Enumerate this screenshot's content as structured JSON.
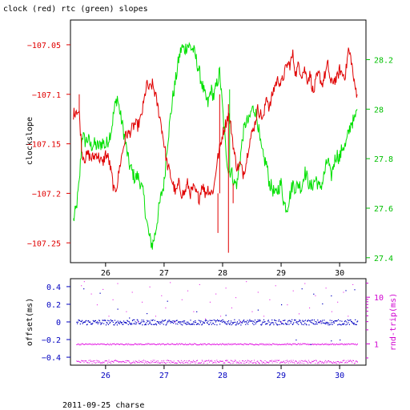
{
  "title": "clock (red) rtc (green) slopes",
  "footer": "2011-09-25 charse",
  "colors": {
    "clock": "#e00000",
    "rtc": "#00e000",
    "offset": "#0000c0",
    "rtrip": "#e000e0",
    "axis": "#000000"
  },
  "chart_data": [
    {
      "type": "line",
      "title": "clock (red) rtc (green) slopes",
      "ylabel": "clockslope",
      "ylabel_right": "",
      "xlim": [
        25.4,
        30.45
      ],
      "ylim": [
        -107.27,
        -107.025
      ],
      "ylim_right": [
        27.38,
        28.36
      ],
      "x_ticks": [
        "26",
        "27",
        "28",
        "29",
        "30"
      ],
      "y_ticks_left": [
        "-107.05",
        "-107.1",
        "-107.15",
        "-107.2",
        "-107.25"
      ],
      "y_ticks_right": [
        "28.2",
        "28",
        "27.8",
        "27.6",
        "27.4"
      ],
      "series": [
        {
          "axis": "left",
          "color": "#e00000",
          "x": [
            25.45,
            25.5,
            25.55,
            25.6,
            25.65,
            25.7,
            25.75,
            25.8,
            25.85,
            25.9,
            25.95,
            26.0,
            26.05,
            26.1,
            26.15,
            26.2,
            26.25,
            26.3,
            26.35,
            26.4,
            26.45,
            26.5,
            26.55,
            26.6,
            26.65,
            26.7,
            26.75,
            26.8,
            26.85,
            26.9,
            26.95,
            27.0,
            27.05,
            27.1,
            27.15,
            27.2,
            27.25,
            27.3,
            27.35,
            27.4,
            27.45,
            27.5,
            27.55,
            27.6,
            27.65,
            27.7,
            27.75,
            27.8,
            27.85,
            27.9,
            27.95,
            28.0,
            28.05,
            28.1,
            28.15,
            28.2,
            28.25,
            28.3,
            28.35,
            28.4,
            28.45,
            28.5,
            28.55,
            28.6,
            28.65,
            28.7,
            28.75,
            28.8,
            28.85,
            28.9,
            28.95,
            29.0,
            29.05,
            29.1,
            29.15,
            29.2,
            29.25,
            29.3,
            29.35,
            29.4,
            29.45,
            29.5,
            29.55,
            29.6,
            29.65,
            29.7,
            29.75,
            29.8,
            29.85,
            29.9,
            29.95,
            30.0,
            30.05,
            30.1,
            30.15,
            30.2,
            30.25,
            30.3
          ],
          "y": [
            -107.12,
            -107.115,
            -107.12,
            -107.16,
            -107.165,
            -107.16,
            -107.165,
            -107.163,
            -107.16,
            -107.165,
            -107.17,
            -107.16,
            -107.165,
            -107.18,
            -107.2,
            -107.19,
            -107.17,
            -107.155,
            -107.14,
            -107.14,
            -107.135,
            -107.13,
            -107.132,
            -107.125,
            -107.11,
            -107.09,
            -107.095,
            -107.09,
            -107.1,
            -107.115,
            -107.13,
            -107.15,
            -107.17,
            -107.18,
            -107.19,
            -107.2,
            -107.19,
            -107.2,
            -107.2,
            -107.19,
            -107.2,
            -107.195,
            -107.2,
            -107.205,
            -107.19,
            -107.2,
            -107.195,
            -107.2,
            -107.195,
            -107.17,
            -107.155,
            -107.14,
            -107.13,
            -107.12,
            -107.135,
            -107.16,
            -107.175,
            -107.17,
            -107.18,
            -107.17,
            -107.15,
            -107.14,
            -107.13,
            -107.115,
            -107.12,
            -107.125,
            -107.1,
            -107.115,
            -107.1,
            -107.09,
            -107.085,
            -107.09,
            -107.08,
            -107.07,
            -107.07,
            -107.06,
            -107.08,
            -107.07,
            -107.08,
            -107.075,
            -107.085,
            -107.08,
            -107.1,
            -107.085,
            -107.08,
            -107.09,
            -107.08,
            -107.07,
            -107.09,
            -107.085,
            -107.085,
            -107.075,
            -107.08,
            -107.08,
            -107.055,
            -107.065,
            -107.09,
            -107.1
          ]
        },
        {
          "axis": "right",
          "color": "#00e000",
          "x": [
            25.45,
            25.5,
            25.55,
            25.6,
            25.65,
            25.7,
            25.75,
            25.8,
            25.85,
            25.9,
            25.95,
            26.0,
            26.05,
            26.1,
            26.15,
            26.2,
            26.25,
            26.3,
            26.35,
            26.4,
            26.45,
            26.5,
            26.55,
            26.6,
            26.65,
            26.7,
            26.75,
            26.8,
            26.85,
            26.9,
            26.95,
            27.0,
            27.05,
            27.1,
            27.15,
            27.2,
            27.25,
            27.3,
            27.35,
            27.4,
            27.45,
            27.5,
            27.55,
            27.6,
            27.65,
            27.7,
            27.75,
            27.8,
            27.85,
            27.9,
            27.95,
            28.0,
            28.05,
            28.1,
            28.15,
            28.2,
            28.25,
            28.3,
            28.35,
            28.4,
            28.45,
            28.5,
            28.55,
            28.6,
            28.65,
            28.7,
            28.75,
            28.8,
            28.85,
            28.9,
            28.95,
            29.0,
            29.05,
            29.1,
            29.15,
            29.2,
            29.25,
            29.3,
            29.35,
            29.4,
            29.45,
            29.5,
            29.55,
            29.6,
            29.65,
            29.7,
            29.75,
            29.8,
            29.85,
            29.9,
            29.95,
            30.0,
            30.05,
            30.1,
            30.15,
            30.2,
            30.25,
            30.3
          ],
          "y": [
            27.55,
            27.6,
            27.7,
            27.9,
            27.87,
            27.88,
            27.85,
            27.86,
            27.85,
            27.85,
            27.87,
            27.85,
            27.88,
            27.92,
            28.0,
            28.05,
            27.98,
            27.92,
            27.85,
            27.78,
            27.75,
            27.72,
            27.73,
            27.7,
            27.65,
            27.55,
            27.48,
            27.45,
            27.5,
            27.58,
            27.65,
            27.7,
            27.85,
            27.95,
            28.05,
            28.12,
            28.2,
            28.25,
            28.24,
            28.26,
            28.25,
            28.24,
            28.2,
            28.15,
            28.1,
            28.05,
            28.02,
            28.08,
            28.05,
            28.1,
            28.15,
            28.0,
            27.85,
            27.75,
            27.75,
            27.7,
            27.7,
            27.8,
            27.9,
            27.95,
            27.95,
            28.0,
            28.0,
            27.95,
            27.85,
            27.8,
            27.78,
            27.7,
            27.68,
            27.65,
            27.68,
            27.7,
            27.62,
            27.6,
            27.65,
            27.7,
            27.68,
            27.7,
            27.68,
            27.75,
            27.72,
            27.68,
            27.7,
            27.72,
            27.68,
            27.7,
            27.75,
            27.8,
            27.72,
            27.78,
            27.82,
            27.8,
            27.85,
            27.85,
            27.9,
            27.95,
            27.95,
            28.0
          ]
        }
      ],
      "spikes": [
        {
          "x": 27.92,
          "y_from": -107.2,
          "y_to": -107.24,
          "axis": "left",
          "color": "#e00000"
        },
        {
          "x": 27.95,
          "y_from": -107.2,
          "y_to": -107.1,
          "axis": "left",
          "color": "#e00000"
        },
        {
          "x": 28.1,
          "y_from": -107.11,
          "y_to": -107.26,
          "axis": "left",
          "color": "#e00000"
        },
        {
          "x": 28.18,
          "y_from": -107.21,
          "y_to": -107.19,
          "axis": "left",
          "color": "#e00000"
        },
        {
          "x": 25.55,
          "y_from": -107.12,
          "y_to": -107.1,
          "axis": "left",
          "color": "#e00000"
        },
        {
          "x": 28.12,
          "y_from": 27.75,
          "y_to": 28.08,
          "axis": "right",
          "color": "#00e000"
        }
      ]
    },
    {
      "type": "scatter",
      "ylabel": "offset(ms)",
      "ylabel_right": "rnd-trip(ms)",
      "xlim": [
        25.4,
        30.45
      ],
      "ylim": [
        -0.49,
        0.49
      ],
      "ylim_right_log": [
        0.35,
        25
      ],
      "x_ticks": [
        "26",
        "27",
        "28",
        "29",
        "30"
      ],
      "y_ticks_left": [
        "0.4",
        "0.2",
        "0",
        "-0.2",
        "-0.4"
      ],
      "y_ticks_right": [
        "10",
        "1"
      ],
      "offset_band": {
        "x_from": 25.5,
        "x_to": 30.3,
        "level": 0.0,
        "spread": 0.03,
        "color": "#0000c0"
      },
      "rtrip_bands": [
        {
          "x_from": 25.5,
          "x_to": 30.3,
          "level": 1.0,
          "spread_log": 0.015,
          "color": "#e000e0"
        },
        {
          "x_from": 25.5,
          "x_to": 30.3,
          "level": 0.42,
          "spread_log": 0.035,
          "color": "#e000e0"
        }
      ],
      "offset_outliers": [
        {
          "x": 25.62,
          "y": 0.38
        },
        {
          "x": 25.9,
          "y": 0.33
        },
        {
          "x": 26.2,
          "y": 0.15
        },
        {
          "x": 26.7,
          "y": 0.1
        },
        {
          "x": 27.05,
          "y": 0.24
        },
        {
          "x": 27.55,
          "y": 0.12
        },
        {
          "x": 28.05,
          "y": 0.08
        },
        {
          "x": 28.6,
          "y": 0.14
        },
        {
          "x": 29.0,
          "y": 0.2
        },
        {
          "x": 29.35,
          "y": 0.38
        },
        {
          "x": 29.55,
          "y": 0.32
        },
        {
          "x": 29.7,
          "y": 0.21
        },
        {
          "x": 29.85,
          "y": 0.3
        },
        {
          "x": 30.1,
          "y": 0.36
        },
        {
          "x": 30.25,
          "y": 0.37
        },
        {
          "x": 29.25,
          "y": -0.2
        },
        {
          "x": 29.85,
          "y": -0.21
        },
        {
          "x": 30.0,
          "y": -0.2
        },
        {
          "x": 29.5,
          "y": -0.25
        },
        {
          "x": 26.4,
          "y": 0.05
        }
      ],
      "rtrip_outliers": [
        {
          "x": 25.58,
          "y": 18
        },
        {
          "x": 25.63,
          "y": 22
        },
        {
          "x": 25.75,
          "y": 12
        },
        {
          "x": 25.85,
          "y": 7
        },
        {
          "x": 25.95,
          "y": 15
        },
        {
          "x": 26.05,
          "y": 4
        },
        {
          "x": 26.12,
          "y": 9
        },
        {
          "x": 26.2,
          "y": 20
        },
        {
          "x": 26.35,
          "y": 5
        },
        {
          "x": 26.45,
          "y": 13
        },
        {
          "x": 26.55,
          "y": 3
        },
        {
          "x": 26.62,
          "y": 8
        },
        {
          "x": 26.75,
          "y": 17
        },
        {
          "x": 26.85,
          "y": 4
        },
        {
          "x": 26.95,
          "y": 11
        },
        {
          "x": 27.02,
          "y": 6
        },
        {
          "x": 27.1,
          "y": 21
        },
        {
          "x": 27.18,
          "y": 3
        },
        {
          "x": 27.3,
          "y": 9
        },
        {
          "x": 27.4,
          "y": 14
        },
        {
          "x": 27.5,
          "y": 5
        },
        {
          "x": 27.6,
          "y": 19
        },
        {
          "x": 27.7,
          "y": 3.5
        },
        {
          "x": 27.78,
          "y": 8
        },
        {
          "x": 27.88,
          "y": 12
        },
        {
          "x": 27.96,
          "y": 4
        },
        {
          "x": 28.05,
          "y": 16
        },
        {
          "x": 28.15,
          "y": 6
        },
        {
          "x": 28.22,
          "y": 10
        },
        {
          "x": 28.3,
          "y": 3
        },
        {
          "x": 28.4,
          "y": 22
        },
        {
          "x": 28.5,
          "y": 5
        },
        {
          "x": 28.6,
          "y": 13
        },
        {
          "x": 28.7,
          "y": 4
        },
        {
          "x": 28.8,
          "y": 9
        },
        {
          "x": 28.9,
          "y": 18
        },
        {
          "x": 29.0,
          "y": 3
        },
        {
          "x": 29.1,
          "y": 7
        },
        {
          "x": 29.2,
          "y": 14
        },
        {
          "x": 29.3,
          "y": 4.5
        },
        {
          "x": 29.4,
          "y": 20
        },
        {
          "x": 29.48,
          "y": 6
        },
        {
          "x": 29.58,
          "y": 11
        },
        {
          "x": 29.66,
          "y": 3
        },
        {
          "x": 29.76,
          "y": 16
        },
        {
          "x": 29.86,
          "y": 5
        },
        {
          "x": 29.96,
          "y": 8
        },
        {
          "x": 30.06,
          "y": 13
        },
        {
          "x": 30.14,
          "y": 4
        },
        {
          "x": 30.22,
          "y": 19
        }
      ]
    }
  ]
}
